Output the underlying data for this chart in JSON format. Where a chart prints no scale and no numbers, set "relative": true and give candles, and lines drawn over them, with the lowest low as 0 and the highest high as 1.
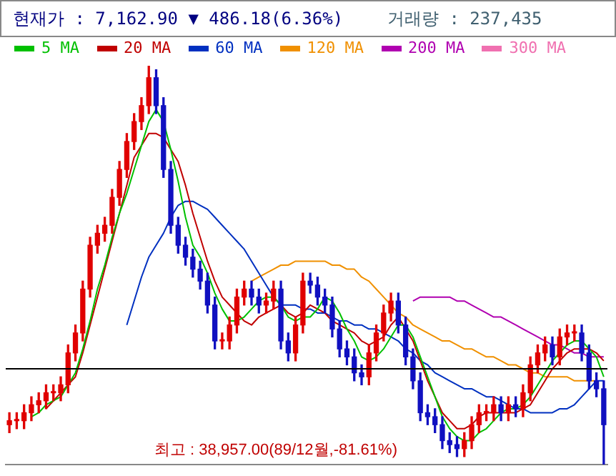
{
  "chart_data": {
    "type": "candlestick",
    "relative": true,
    "legend": "top left",
    "annotations": [
      "현재가 : 7,162.90 ▼ 486.18(6.36%)",
      "거래량 : 237,435",
      "최고 : 38,957.00(89/12월,-81.61%)"
    ],
    "categories": [
      null,
      null,
      null,
      null,
      null,
      null,
      null,
      null,
      null,
      null,
      null,
      null,
      null,
      null,
      null,
      null,
      null,
      null,
      null,
      null,
      null,
      null,
      null,
      null,
      null,
      null,
      null,
      null,
      null,
      null,
      null,
      null,
      null,
      null,
      null,
      null,
      null,
      null,
      null,
      null,
      null,
      null,
      null,
      null,
      null,
      null,
      null,
      null,
      null,
      null,
      null,
      null,
      null,
      null,
      null,
      null,
      null,
      null,
      null,
      null,
      null,
      null,
      null,
      null,
      null,
      null,
      null,
      null,
      null,
      null,
      null,
      null,
      null,
      null,
      null,
      null,
      null,
      null,
      null,
      null,
      null,
      null
    ],
    "ohlc": [
      [
        0.1,
        0.13,
        0.08,
        0.11
      ],
      [
        0.11,
        0.13,
        0.09,
        0.11
      ],
      [
        0.11,
        0.15,
        0.09,
        0.13
      ],
      [
        0.13,
        0.17,
        0.11,
        0.15
      ],
      [
        0.15,
        0.18,
        0.13,
        0.16
      ],
      [
        0.16,
        0.2,
        0.14,
        0.18
      ],
      [
        0.18,
        0.2,
        0.16,
        0.18
      ],
      [
        0.18,
        0.22,
        0.16,
        0.2
      ],
      [
        0.2,
        0.3,
        0.18,
        0.28
      ],
      [
        0.28,
        0.35,
        0.26,
        0.33
      ],
      [
        0.33,
        0.46,
        0.31,
        0.44
      ],
      [
        0.44,
        0.57,
        0.42,
        0.55
      ],
      [
        0.55,
        0.6,
        0.53,
        0.58
      ],
      [
        0.58,
        0.62,
        0.56,
        0.6
      ],
      [
        0.6,
        0.69,
        0.58,
        0.67
      ],
      [
        0.67,
        0.76,
        0.65,
        0.74
      ],
      [
        0.74,
        0.83,
        0.72,
        0.81
      ],
      [
        0.81,
        0.88,
        0.79,
        0.86
      ],
      [
        0.86,
        0.92,
        0.84,
        0.9
      ],
      [
        0.9,
        1.0,
        0.88,
        0.97
      ],
      [
        0.97,
        0.99,
        0.88,
        0.9
      ],
      [
        0.9,
        0.92,
        0.72,
        0.74
      ],
      [
        0.74,
        0.76,
        0.58,
        0.6
      ],
      [
        0.6,
        0.62,
        0.53,
        0.55
      ],
      [
        0.55,
        0.57,
        0.5,
        0.52
      ],
      [
        0.52,
        0.54,
        0.47,
        0.49
      ],
      [
        0.49,
        0.51,
        0.44,
        0.46
      ],
      [
        0.46,
        0.48,
        0.38,
        0.4
      ],
      [
        0.4,
        0.42,
        0.29,
        0.31
      ],
      [
        0.31,
        0.33,
        0.29,
        0.31
      ],
      [
        0.31,
        0.37,
        0.29,
        0.35
      ],
      [
        0.35,
        0.44,
        0.33,
        0.42
      ],
      [
        0.42,
        0.46,
        0.4,
        0.44
      ],
      [
        0.44,
        0.46,
        0.4,
        0.42
      ],
      [
        0.42,
        0.44,
        0.38,
        0.4
      ],
      [
        0.4,
        0.43,
        0.38,
        0.41
      ],
      [
        0.41,
        0.46,
        0.39,
        0.44
      ],
      [
        0.44,
        0.46,
        0.29,
        0.31
      ],
      [
        0.31,
        0.33,
        0.26,
        0.28
      ],
      [
        0.28,
        0.37,
        0.26,
        0.35
      ],
      [
        0.35,
        0.48,
        0.33,
        0.46
      ],
      [
        0.46,
        0.48,
        0.43,
        0.45
      ],
      [
        0.45,
        0.47,
        0.4,
        0.42
      ],
      [
        0.42,
        0.44,
        0.38,
        0.4
      ],
      [
        0.4,
        0.42,
        0.32,
        0.34
      ],
      [
        0.34,
        0.36,
        0.27,
        0.29
      ],
      [
        0.29,
        0.31,
        0.25,
        0.27
      ],
      [
        0.27,
        0.29,
        0.21,
        0.23
      ],
      [
        0.23,
        0.25,
        0.2,
        0.22
      ],
      [
        0.22,
        0.3,
        0.2,
        0.28
      ],
      [
        0.28,
        0.35,
        0.26,
        0.33
      ],
      [
        0.33,
        0.4,
        0.31,
        0.38
      ],
      [
        0.38,
        0.43,
        0.36,
        0.41
      ],
      [
        0.41,
        0.43,
        0.33,
        0.35
      ],
      [
        0.35,
        0.37,
        0.25,
        0.27
      ],
      [
        0.27,
        0.29,
        0.19,
        0.21
      ],
      [
        0.21,
        0.23,
        0.11,
        0.13
      ],
      [
        0.13,
        0.15,
        0.1,
        0.12
      ],
      [
        0.12,
        0.14,
        0.08,
        0.1
      ],
      [
        0.1,
        0.12,
        0.04,
        0.06
      ],
      [
        0.06,
        0.08,
        0.03,
        0.05
      ],
      [
        0.05,
        0.07,
        0.02,
        0.04
      ],
      [
        0.04,
        0.08,
        0.02,
        0.06
      ],
      [
        0.06,
        0.12,
        0.04,
        0.1
      ],
      [
        0.1,
        0.15,
        0.08,
        0.13
      ],
      [
        0.13,
        0.15,
        0.11,
        0.13
      ],
      [
        0.13,
        0.17,
        0.11,
        0.15
      ],
      [
        0.15,
        0.17,
        0.11,
        0.13
      ],
      [
        0.13,
        0.17,
        0.11,
        0.15
      ],
      [
        0.15,
        0.17,
        0.12,
        0.14
      ],
      [
        0.14,
        0.2,
        0.12,
        0.18
      ],
      [
        0.18,
        0.27,
        0.16,
        0.25
      ],
      [
        0.25,
        0.3,
        0.23,
        0.28
      ],
      [
        0.28,
        0.32,
        0.26,
        0.3
      ],
      [
        0.3,
        0.32,
        0.25,
        0.27
      ],
      [
        0.27,
        0.34,
        0.25,
        0.32
      ],
      [
        0.32,
        0.35,
        0.3,
        0.33
      ],
      [
        0.33,
        0.35,
        0.31,
        0.33
      ],
      [
        0.33,
        0.35,
        0.26,
        0.28
      ],
      [
        0.28,
        0.3,
        0.19,
        0.21
      ],
      [
        0.21,
        0.23,
        0.17,
        0.19
      ],
      [
        0.19,
        0.21,
        0.0,
        0.1
      ]
    ],
    "series": [
      {
        "name": "5 MA",
        "type": "line",
        "color": "#00c000",
        "values": [
          null,
          null,
          null,
          0.12,
          0.13,
          0.15,
          0.16,
          0.17,
          0.2,
          0.23,
          0.29,
          0.36,
          0.44,
          0.5,
          0.57,
          0.63,
          0.68,
          0.74,
          0.8,
          0.86,
          0.89,
          0.86,
          0.79,
          0.71,
          0.62,
          0.55,
          0.52,
          0.48,
          0.43,
          0.39,
          0.36,
          0.36,
          0.37,
          0.39,
          0.41,
          0.42,
          0.42,
          0.4,
          0.37,
          0.36,
          0.37,
          0.37,
          0.39,
          0.42,
          0.41,
          0.38,
          0.34,
          0.31,
          0.27,
          0.26,
          0.27,
          0.29,
          0.32,
          0.35,
          0.35,
          0.32,
          0.27,
          0.22,
          0.17,
          0.12,
          0.09,
          0.07,
          0.06,
          0.06,
          0.08,
          0.09,
          0.11,
          0.13,
          0.14,
          0.14,
          0.15,
          0.17,
          0.2,
          0.23,
          0.26,
          0.28,
          0.3,
          0.31,
          0.31,
          0.29,
          0.27,
          0.22
        ]
      },
      {
        "name": "20 MA",
        "type": "line",
        "color": "#c00000",
        "values": [
          null,
          null,
          null,
          null,
          null,
          0.14,
          0.16,
          0.18,
          0.2,
          0.22,
          0.28,
          0.35,
          0.42,
          0.49,
          0.56,
          0.63,
          0.7,
          0.77,
          0.8,
          0.83,
          0.83,
          0.82,
          0.79,
          0.76,
          0.7,
          0.63,
          0.57,
          0.51,
          0.46,
          0.42,
          0.4,
          0.38,
          0.36,
          0.35,
          0.37,
          0.38,
          0.39,
          0.4,
          0.38,
          0.37,
          0.38,
          0.4,
          0.39,
          0.38,
          0.36,
          0.35,
          0.34,
          0.33,
          0.31,
          0.3,
          0.31,
          0.32,
          0.35,
          0.37,
          0.34,
          0.31,
          0.26,
          0.21,
          0.17,
          0.13,
          0.11,
          0.09,
          0.09,
          0.1,
          0.12,
          0.13,
          0.13,
          0.13,
          0.13,
          0.13,
          0.14,
          0.15,
          0.18,
          0.21,
          0.24,
          0.26,
          0.28,
          0.29,
          0.29,
          0.29,
          0.28,
          0.26
        ]
      },
      {
        "name": "60 MA",
        "type": "line",
        "color": "#0030c0",
        "values": [
          null,
          null,
          null,
          null,
          null,
          null,
          null,
          null,
          null,
          null,
          null,
          null,
          null,
          null,
          null,
          null,
          0.35,
          0.41,
          0.47,
          0.52,
          0.55,
          0.58,
          0.62,
          0.65,
          0.66,
          0.66,
          0.65,
          0.64,
          0.62,
          0.6,
          0.58,
          0.56,
          0.54,
          0.51,
          0.48,
          0.45,
          0.42,
          0.4,
          0.4,
          0.4,
          0.39,
          0.39,
          0.38,
          0.38,
          0.37,
          0.36,
          0.36,
          0.35,
          0.35,
          0.34,
          0.34,
          0.33,
          0.32,
          0.31,
          0.29,
          0.28,
          0.26,
          0.25,
          0.23,
          0.22,
          0.21,
          0.2,
          0.19,
          0.19,
          0.18,
          0.17,
          0.17,
          0.16,
          0.15,
          0.14,
          0.14,
          0.13,
          0.13,
          0.13,
          0.13,
          0.14,
          0.14,
          0.15,
          0.17,
          0.19,
          0.21,
          0.21
        ]
      },
      {
        "name": "120 MA",
        "type": "line",
        "color": "#f09000",
        "values": [
          null,
          null,
          null,
          null,
          null,
          null,
          null,
          null,
          null,
          null,
          null,
          null,
          null,
          null,
          null,
          null,
          null,
          null,
          null,
          null,
          null,
          null,
          null,
          null,
          null,
          null,
          null,
          null,
          null,
          null,
          null,
          null,
          null,
          0.46,
          0.47,
          0.48,
          0.49,
          0.5,
          0.5,
          0.51,
          0.51,
          0.51,
          0.51,
          0.51,
          0.5,
          0.5,
          0.49,
          0.49,
          0.47,
          0.46,
          0.44,
          0.42,
          0.4,
          0.38,
          0.37,
          0.35,
          0.34,
          0.33,
          0.32,
          0.31,
          0.31,
          0.3,
          0.29,
          0.29,
          0.28,
          0.27,
          0.27,
          0.26,
          0.25,
          0.25,
          0.24,
          0.23,
          0.23,
          0.22,
          0.22,
          0.22,
          0.22,
          0.21,
          0.21,
          0.21,
          0.21,
          null
        ]
      },
      {
        "name": "200 MA",
        "type": "line",
        "color": "#b000b0",
        "values": [
          null,
          null,
          null,
          null,
          null,
          null,
          null,
          null,
          null,
          null,
          null,
          null,
          null,
          null,
          null,
          null,
          null,
          null,
          null,
          null,
          null,
          null,
          null,
          null,
          null,
          null,
          null,
          null,
          null,
          null,
          null,
          null,
          null,
          null,
          null,
          null,
          null,
          null,
          null,
          null,
          null,
          null,
          null,
          null,
          null,
          null,
          null,
          null,
          null,
          null,
          null,
          null,
          null,
          null,
          null,
          0.41,
          0.42,
          0.42,
          0.42,
          0.42,
          0.42,
          0.41,
          0.41,
          0.4,
          0.39,
          0.38,
          0.37,
          0.37,
          0.36,
          0.35,
          0.34,
          0.33,
          0.32,
          0.31,
          0.3,
          0.3,
          0.29,
          0.28,
          0.28,
          0.27,
          0.27,
          0.27
        ]
      },
      {
        "name": "300 MA",
        "type": "line",
        "color": "#f070b0",
        "values": [
          null,
          null,
          null,
          null,
          null,
          null,
          null,
          null,
          null,
          null,
          null,
          null,
          null,
          null,
          null,
          null,
          null,
          null,
          null,
          null,
          null,
          null,
          null,
          null,
          null,
          null,
          null,
          null,
          null,
          null,
          null,
          null,
          null,
          null,
          null,
          null,
          null,
          null,
          null,
          null,
          null,
          null,
          null,
          null,
          null,
          null,
          null,
          null,
          null,
          null,
          null,
          null,
          null,
          null,
          null,
          null,
          null,
          null,
          null,
          null,
          null,
          null,
          null,
          null,
          null,
          null,
          null,
          null,
          null,
          null,
          null,
          null,
          null,
          null,
          null,
          null,
          null,
          null,
          null,
          null,
          null,
          null
        ]
      }
    ],
    "ref_lines": [
      {
        "axis": "y",
        "value": 0.24,
        "color": "#000000"
      }
    ]
  }
}
